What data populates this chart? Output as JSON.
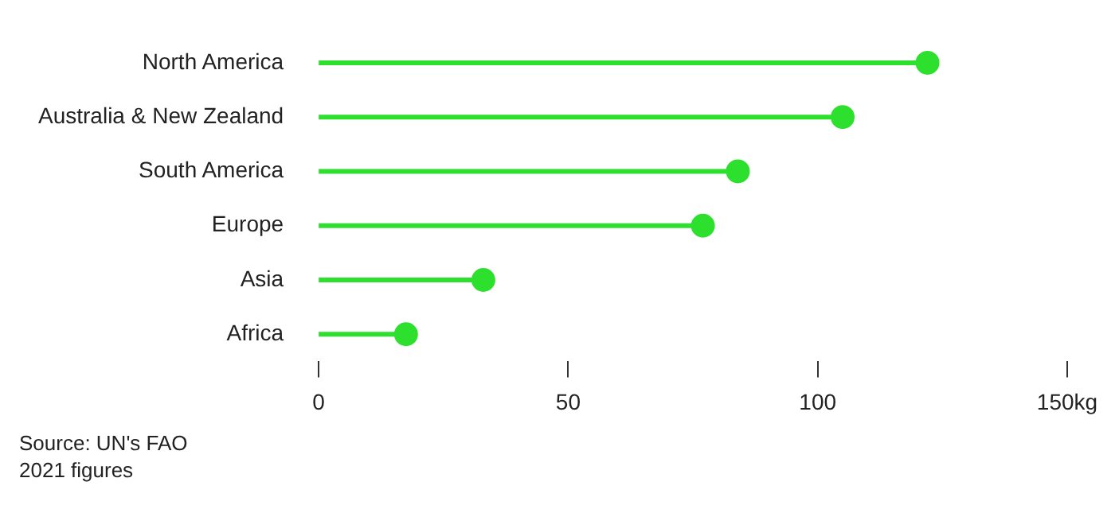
{
  "chart_data": {
    "type": "lollipop",
    "orientation": "horizontal",
    "categories": [
      "North America",
      "Australia & New Zealand",
      "South America",
      "Europe",
      "Asia",
      "Africa"
    ],
    "values": [
      122,
      105,
      84,
      77,
      33,
      17.5
    ],
    "color": "#2ee02e",
    "marker": "circle",
    "xlim": [
      0,
      150
    ],
    "xticks": [
      0,
      50,
      100,
      {
        "value": 150,
        "label": "150kg"
      }
    ],
    "annotations": [
      "Source: UN's FAO",
      "2021 figures"
    ]
  }
}
